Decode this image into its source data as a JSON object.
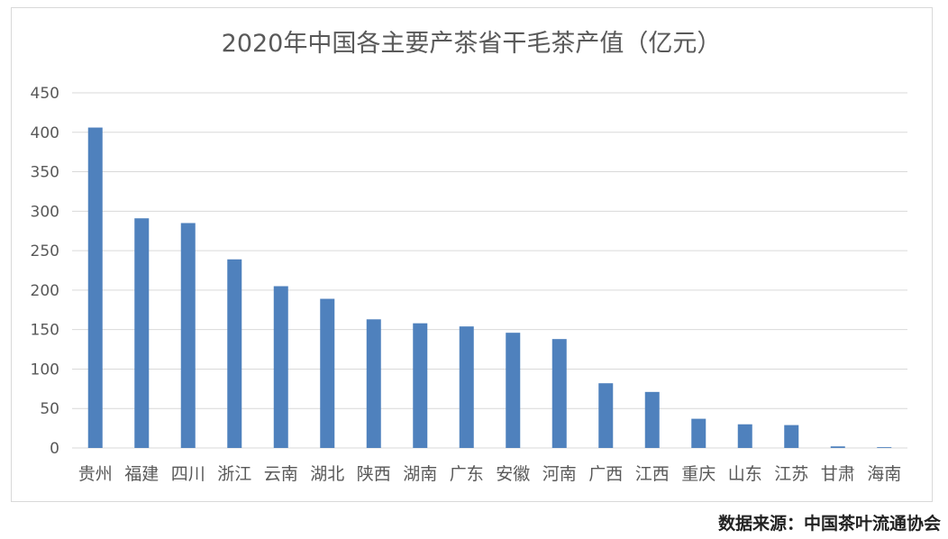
{
  "chart_data": {
    "type": "bar",
    "title": "2020年中国各主要产茶省干毛茶产值（亿元）",
    "xlabel": "",
    "ylabel": "",
    "categories": [
      "贵州",
      "福建",
      "四川",
      "浙江",
      "云南",
      "湖北",
      "陕西",
      "湖南",
      "广东",
      "安徽",
      "河南",
      "广西",
      "江西",
      "重庆",
      "山东",
      "江苏",
      "甘肃",
      "海南"
    ],
    "values": [
      406,
      291,
      285,
      239,
      205,
      189,
      163,
      158,
      154,
      146,
      138,
      82,
      71,
      37,
      30,
      29,
      2,
      1
    ],
    "ylim": [
      0,
      450
    ],
    "yticks": [
      0,
      50,
      100,
      150,
      200,
      250,
      300,
      350,
      400,
      450
    ],
    "grid": true,
    "legend": "none",
    "bar_color": "#4f81bd",
    "grid_color": "#d9d9d9",
    "text_color": "#595959"
  },
  "source_text": "数据来源：中国茶叶流通协会"
}
